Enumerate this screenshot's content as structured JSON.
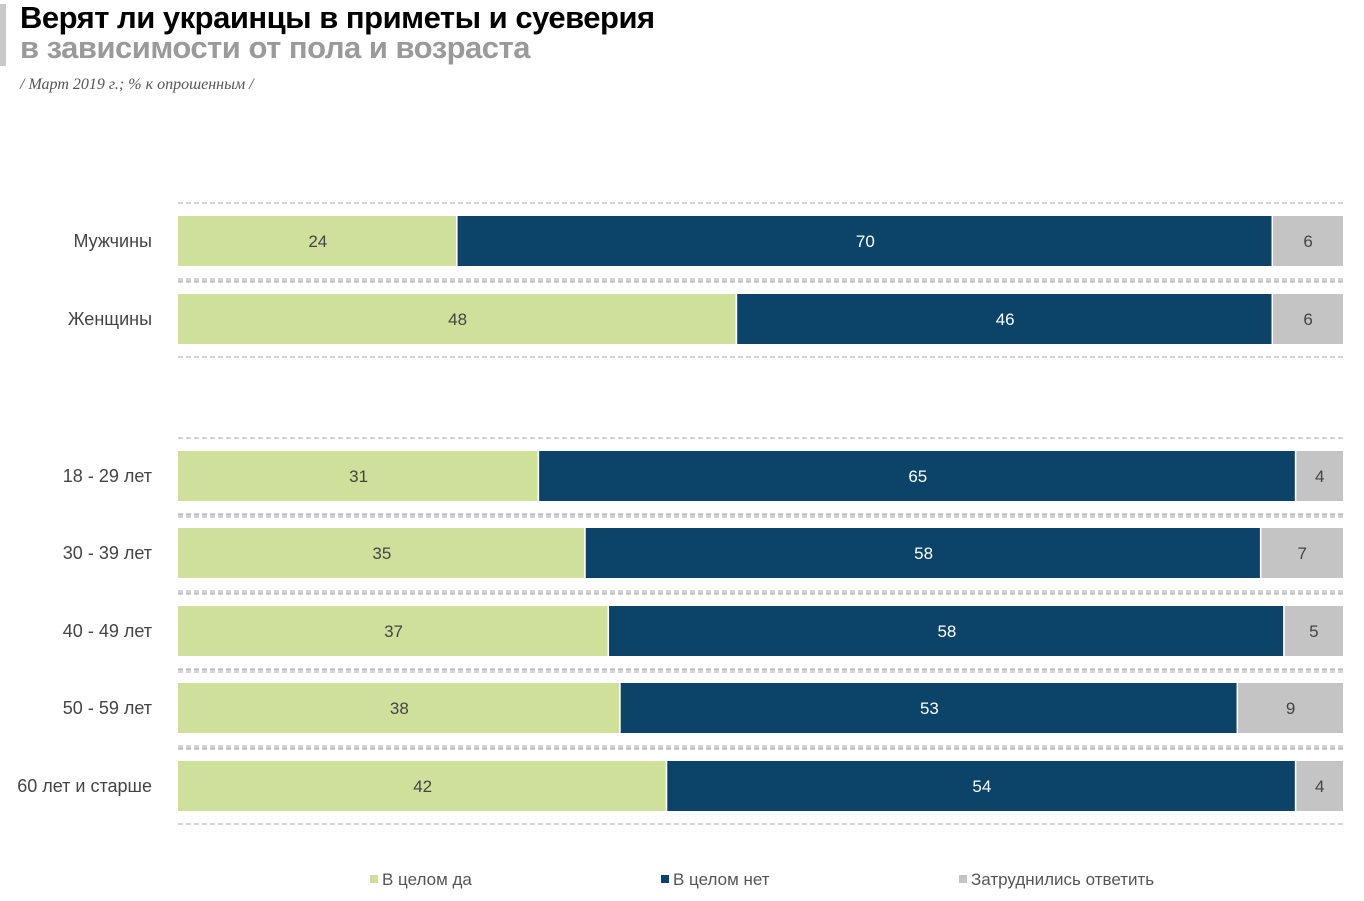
{
  "title": "Верят ли украинцы в приметы и суеверия",
  "title_line2": "в зависимости от пола и возраста",
  "subtitle": "/ Март 2019 г.; % к опрошенным /",
  "chart_data": {
    "type": "bar",
    "orientation": "horizontal",
    "stacked": true,
    "categories": [
      "Мужчины",
      "Женщины",
      "18 - 29 лет",
      "30 - 39 лет",
      "40 - 49 лет",
      "50 - 59 лет",
      "60 лет и старше"
    ],
    "groups": [
      [
        0,
        1
      ],
      [
        2,
        3,
        4,
        5,
        6
      ]
    ],
    "series": [
      {
        "name": "В целом да",
        "color": "#cfe09b",
        "values": [
          24,
          48,
          31,
          35,
          37,
          38,
          42
        ]
      },
      {
        "name": "В целом нет",
        "color": "#0b4468",
        "values": [
          70,
          46,
          65,
          58,
          58,
          53,
          54
        ]
      },
      {
        "name": "Затруднились ответить",
        "color": "#c4c4c4",
        "values": [
          6,
          6,
          4,
          7,
          5,
          9,
          4
        ]
      }
    ],
    "xlim": [
      0,
      100
    ],
    "grid": "dashed separators",
    "legend": "bottom"
  }
}
